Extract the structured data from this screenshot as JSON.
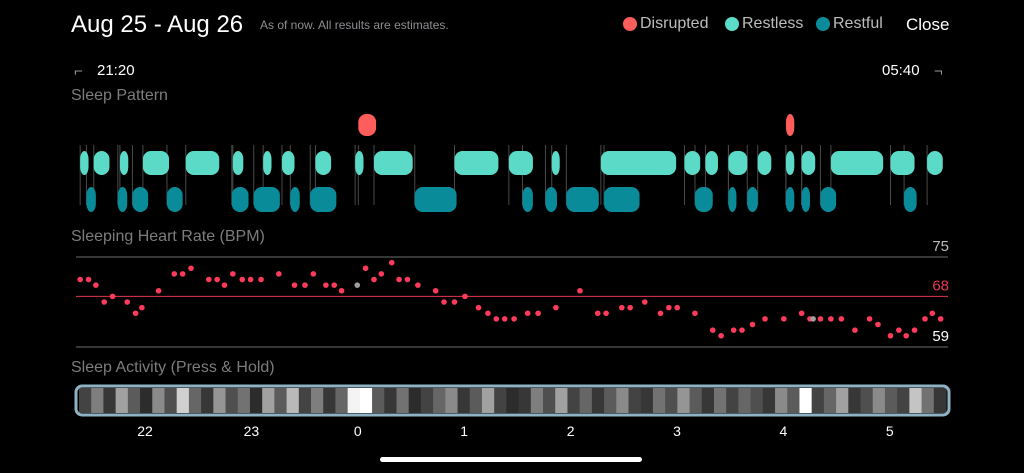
{
  "header": {
    "title": "Aug 25 - Aug 26",
    "subtitle": "As of now. All results are estimates.",
    "close_label": "Close",
    "legend": [
      {
        "label": "Disrupted",
        "color": "#ff5c5c"
      },
      {
        "label": "Restless",
        "color": "#5cdac8"
      },
      {
        "label": "Restful",
        "color": "#0a8b99"
      }
    ]
  },
  "time_range": {
    "start": "21:20",
    "end": "05:40"
  },
  "sections": {
    "sleep_pattern": "Sleep Pattern",
    "heart_rate": "Sleeping Heart Rate (BPM)",
    "activity": "Sleep Activity (Press & Hold)"
  },
  "hours": [
    "22",
    "23",
    "0",
    "1",
    "2",
    "3",
    "4",
    "5"
  ],
  "chart_data": {
    "type": "scatter",
    "title": "Sleeping Heart Rate (BPM)",
    "reference_lines": [
      75,
      68,
      59
    ],
    "ylim": [
      58,
      77
    ],
    "x_unit": "hour of night (21.33 = 21:20, 29.67 = 05:40)",
    "xlim": [
      21.33,
      29.67
    ],
    "points": [
      [
        21.37,
        71
      ],
      [
        21.45,
        71
      ],
      [
        21.52,
        70
      ],
      [
        21.6,
        67
      ],
      [
        21.68,
        68
      ],
      [
        21.82,
        67
      ],
      [
        21.9,
        65
      ],
      [
        21.96,
        66
      ],
      [
        22.12,
        69
      ],
      [
        22.27,
        72
      ],
      [
        22.35,
        72
      ],
      [
        22.43,
        73
      ],
      [
        22.6,
        71
      ],
      [
        22.68,
        71
      ],
      [
        22.75,
        70
      ],
      [
        22.83,
        72
      ],
      [
        22.92,
        71
      ],
      [
        23.0,
        71
      ],
      [
        23.1,
        71
      ],
      [
        23.27,
        72
      ],
      [
        23.42,
        70
      ],
      [
        23.52,
        70
      ],
      [
        23.6,
        72
      ],
      [
        23.72,
        70
      ],
      [
        23.8,
        70
      ],
      [
        23.87,
        69
      ],
      [
        24.1,
        73
      ],
      [
        24.18,
        71
      ],
      [
        24.25,
        72
      ],
      [
        24.35,
        74
      ],
      [
        24.42,
        71
      ],
      [
        24.5,
        71
      ],
      [
        24.6,
        70
      ],
      [
        24.77,
        69
      ],
      [
        24.85,
        67
      ],
      [
        24.95,
        67
      ],
      [
        25.05,
        68
      ],
      [
        25.18,
        66
      ],
      [
        25.27,
        65
      ],
      [
        25.35,
        64
      ],
      [
        25.43,
        64
      ],
      [
        25.52,
        64
      ],
      [
        25.65,
        65
      ],
      [
        25.75,
        65
      ],
      [
        25.92,
        66
      ],
      [
        26.15,
        69
      ],
      [
        26.32,
        65
      ],
      [
        26.4,
        65
      ],
      [
        26.55,
        66
      ],
      [
        26.63,
        66
      ],
      [
        26.77,
        67
      ],
      [
        26.92,
        65
      ],
      [
        27.0,
        66
      ],
      [
        27.08,
        66
      ],
      [
        27.25,
        65
      ],
      [
        27.42,
        62
      ],
      [
        27.5,
        61
      ],
      [
        27.62,
        62
      ],
      [
        27.7,
        62
      ],
      [
        27.8,
        63
      ],
      [
        27.92,
        64
      ],
      [
        28.1,
        64
      ],
      [
        28.27,
        65
      ],
      [
        28.35,
        64
      ],
      [
        28.45,
        64
      ],
      [
        28.55,
        64
      ],
      [
        28.65,
        64
      ],
      [
        28.78,
        62
      ],
      [
        28.92,
        64
      ],
      [
        29.0,
        63
      ],
      [
        29.12,
        61
      ],
      [
        29.2,
        62
      ],
      [
        29.27,
        61
      ],
      [
        29.35,
        62
      ],
      [
        29.45,
        64
      ],
      [
        29.52,
        65
      ],
      [
        29.6,
        64
      ]
    ],
    "gray_points": [
      [
        24.02,
        70
      ],
      [
        28.38,
        64
      ]
    ]
  },
  "sleep_pattern": {
    "note": "stages over time (hour of night), row: disrupted/restless/restful",
    "restless": [
      [
        21.37,
        21.45
      ],
      [
        21.5,
        21.65
      ],
      [
        21.75,
        21.83
      ],
      [
        21.97,
        22.22
      ],
      [
        22.38,
        22.7
      ],
      [
        22.83,
        22.93
      ],
      [
        23.12,
        23.2
      ],
      [
        23.3,
        23.42
      ],
      [
        23.62,
        23.77
      ],
      [
        24.0,
        24.08
      ],
      [
        24.18,
        24.55
      ],
      [
        24.95,
        25.37
      ],
      [
        25.47,
        25.7
      ],
      [
        25.88,
        25.95
      ],
      [
        26.35,
        27.07
      ],
      [
        27.15,
        27.3
      ],
      [
        27.35,
        27.47
      ],
      [
        27.57,
        27.75
      ],
      [
        27.85,
        27.98
      ],
      [
        28.12,
        28.2
      ],
      [
        28.27,
        28.4
      ],
      [
        28.55,
        29.05
      ],
      [
        29.12,
        29.35
      ],
      [
        29.47,
        29.62
      ]
    ],
    "restful": [
      [
        21.43,
        21.52
      ],
      [
        21.73,
        21.82
      ],
      [
        21.87,
        22.02
      ],
      [
        22.2,
        22.35
      ],
      [
        22.82,
        22.98
      ],
      [
        23.03,
        23.28
      ],
      [
        23.38,
        23.47
      ],
      [
        23.57,
        23.82
      ],
      [
        24.57,
        24.97
      ],
      [
        25.6,
        25.7
      ],
      [
        25.82,
        25.93
      ],
      [
        26.02,
        26.33
      ],
      [
        26.38,
        26.72
      ],
      [
        27.25,
        27.42
      ],
      [
        27.57,
        27.63
      ],
      [
        27.75,
        27.85
      ],
      [
        28.12,
        28.2
      ],
      [
        28.27,
        28.35
      ],
      [
        28.45,
        28.6
      ],
      [
        29.25,
        29.37
      ]
    ],
    "disrupted": [
      [
        24.03,
        24.2
      ],
      [
        28.12,
        28.2
      ]
    ]
  },
  "activity_levels": [
    0.2,
    0.45,
    0.15,
    0.6,
    0.3,
    0.1,
    0.5,
    0.25,
    0.8,
    0.35,
    0.15,
    0.55,
    0.25,
    0.4,
    0.1,
    0.6,
    0.3,
    0.7,
    0.2,
    0.45,
    0.15,
    0.35,
    0.95,
    1.0,
    0.3,
    0.15,
    0.4,
    0.1,
    0.2,
    0.35,
    0.5,
    0.15,
    0.3,
    0.6,
    0.2,
    0.1,
    0.15,
    0.45,
    0.25,
    0.6,
    0.2,
    0.35,
    0.15,
    0.3,
    0.5,
    0.2,
    0.15,
    0.4,
    0.25,
    0.55,
    0.3,
    0.15,
    0.4,
    0.2,
    0.35,
    0.25,
    0.15,
    0.5,
    0.3,
    1.0,
    0.2,
    0.35,
    0.6,
    0.15,
    0.25,
    0.5,
    0.3,
    0.2,
    0.75,
    0.4,
    0.15
  ]
}
